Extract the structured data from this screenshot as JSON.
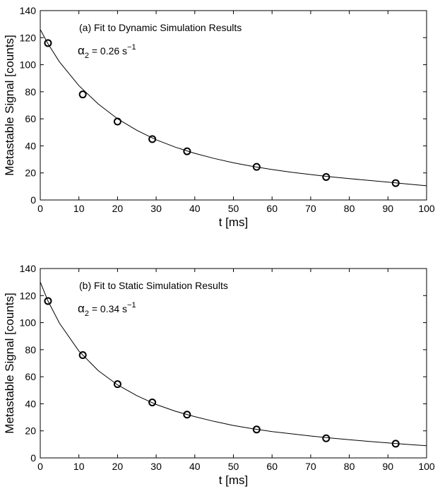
{
  "chart_data": [
    {
      "type": "scatter",
      "annotation": "(a) Fit to Dynamic Simulation Results",
      "alpha_symbol": "α",
      "alpha_subscript": "2",
      "alpha_equals": " = 0.26 s",
      "alpha_unit_exp": "−1",
      "xlabel": "t [ms]",
      "ylabel": "Metastable Signal [counts]",
      "xlim": [
        0,
        100
      ],
      "ylim": [
        0,
        140
      ],
      "xticks": [
        "0",
        "10",
        "20",
        "30",
        "40",
        "50",
        "60",
        "70",
        "80",
        "90",
        "100"
      ],
      "yticks": [
        "0",
        "20",
        "40",
        "60",
        "80",
        "100",
        "120",
        "140"
      ],
      "grid": false,
      "series": [
        {
          "type": "scatter",
          "marker": "circle",
          "x": [
            2,
            11,
            20,
            29,
            38,
            56,
            74,
            92
          ],
          "y": [
            116,
            78,
            58,
            45,
            36,
            24.5,
            17,
            12.5
          ]
        },
        {
          "type": "line",
          "kind": "fit",
          "x": [
            0,
            2,
            5,
            10,
            15,
            20,
            25,
            30,
            35,
            40,
            45,
            50,
            55,
            60,
            65,
            70,
            75,
            80,
            85,
            90,
            95,
            100
          ],
          "y": [
            126,
            115.5,
            102,
            84.5,
            71,
            60,
            51.5,
            44.5,
            39,
            34.5,
            30.7,
            27.5,
            24.8,
            22.5,
            20.5,
            18.8,
            17.2,
            15.8,
            14.5,
            13.2,
            11.8,
            10.5
          ]
        }
      ]
    },
    {
      "type": "scatter",
      "annotation": "(b) Fit to Static Simulation Results",
      "alpha_symbol": "α",
      "alpha_subscript": "2",
      "alpha_equals": " = 0.34 s",
      "alpha_unit_exp": "−1",
      "xlabel": "t [ms]",
      "ylabel": "Metastable Signal [counts]",
      "xlim": [
        0,
        100
      ],
      "ylim": [
        0,
        140
      ],
      "xticks": [
        "0",
        "10",
        "20",
        "30",
        "40",
        "50",
        "60",
        "70",
        "80",
        "90",
        "100"
      ],
      "yticks": [
        "0",
        "20",
        "40",
        "60",
        "80",
        "100",
        "120",
        "140"
      ],
      "grid": false,
      "series": [
        {
          "type": "scatter",
          "marker": "circle",
          "x": [
            2,
            11,
            20,
            29,
            38,
            56,
            74,
            92
          ],
          "y": [
            116,
            76,
            54.5,
            41,
            32,
            21,
            14.5,
            10.5
          ]
        },
        {
          "type": "line",
          "kind": "fit",
          "x": [
            0,
            2,
            5,
            10,
            15,
            20,
            25,
            30,
            35,
            40,
            45,
            50,
            55,
            60,
            65,
            70,
            75,
            80,
            85,
            90,
            95,
            100
          ],
          "y": [
            130,
            116,
            99.5,
            79,
            64.5,
            54,
            46,
            39.5,
            34.5,
            30.5,
            27,
            24,
            21.5,
            19.5,
            17.8,
            16.2,
            14.8,
            13.4,
            12.2,
            11.1,
            10,
            9
          ]
        }
      ]
    }
  ]
}
